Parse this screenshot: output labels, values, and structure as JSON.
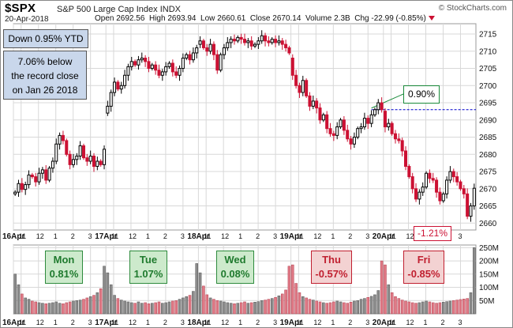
{
  "header": {
    "ticker": "$SPX",
    "name": "S&P 500 Large Cap Index",
    "exchange": "INDX",
    "date": "20-Apr-2018",
    "copyright": "© StockCharts.com",
    "open_label": "Open",
    "open": "2692.56",
    "high_label": "High",
    "high": "2693.94",
    "low_label": "Low",
    "low": "2660.61",
    "close_label": "Close",
    "close": "2670.14",
    "volume_label": "Volume",
    "volume": "2.3B",
    "chg_label": "Chg",
    "chg": "-22.99 (-0.85%)"
  },
  "annotations": {
    "ytd": "Down 0.95% YTD",
    "record_line1": "7.06% below",
    "record_line2": "the record close",
    "record_line3": "on Jan 26 2018",
    "gain_callout": "0.90%",
    "loss_callout": "-1.21%"
  },
  "days": [
    {
      "name": "Mon",
      "pct": "0.81%",
      "dir": "up"
    },
    {
      "name": "Tue",
      "pct": "1.07%",
      "dir": "up"
    },
    {
      "name": "Wed",
      "pct": "0.08%",
      "dir": "up"
    },
    {
      "name": "Thu",
      "pct": "-0.57%",
      "dir": "down"
    },
    {
      "name": "Fri",
      "pct": "-0.85%",
      "dir": "down"
    }
  ],
  "colors": {
    "up": "#000000",
    "down": "#cc1133",
    "vol_up": "#8c8c8c",
    "vol_down": "#e07a86",
    "grid": "#d8d8d8",
    "ref_line": "#0000cc"
  },
  "chart_data": [
    {
      "type": "candlestick",
      "title": "$SPX S&P 500 Large Cap Index INDX",
      "ylim": [
        2658,
        2718
      ],
      "y_ticks": [
        2660,
        2665,
        2670,
        2675,
        2680,
        2685,
        2690,
        2695,
        2700,
        2705,
        2710,
        2715
      ],
      "x_tick_labels": [
        "16Apr",
        "11",
        "12",
        "1",
        "2",
        "3",
        "17Apr",
        "11",
        "12",
        "1",
        "2",
        "3",
        "18Apr",
        "11",
        "12",
        "1",
        "2",
        "3",
        "19Apr",
        "11",
        "12",
        "1",
        "2",
        "3",
        "20Apr",
        "11",
        "12",
        "1",
        "2",
        "3"
      ],
      "reference_line": 2693.0,
      "closes": [
        2669.0,
        2671.5,
        2669.8,
        2671.2,
        2674.0,
        2673.5,
        2672.0,
        2674.5,
        2675.5,
        2672.5,
        2676.0,
        2678.0,
        2683.0,
        2685.5,
        2684.0,
        2680.0,
        2677.0,
        2678.5,
        2679.5,
        2682.5,
        2679.0,
        2678.0,
        2679.5,
        2676.5,
        2678.0,
        2677.0,
        2681.5,
        2694.0,
        2698.0,
        2701.0,
        2699.0,
        2700.0,
        2703.0,
        2705.5,
        2707.0,
        2706.0,
        2707.5,
        2708.0,
        2707.0,
        2705.0,
        2706.0,
        2704.5,
        2703.0,
        2704.0,
        2705.5,
        2706.5,
        2704.0,
        2703.0,
        2705.0,
        2708.0,
        2709.0,
        2707.5,
        2709.5,
        2711.0,
        2713.0,
        2711.0,
        2710.0,
        2712.0,
        2709.0,
        2704.5,
        2709.0,
        2711.0,
        2712.5,
        2713.5,
        2713.0,
        2714.0,
        2713.5,
        2712.5,
        2713.0,
        2711.5,
        2712.0,
        2713.0,
        2714.5,
        2713.0,
        2712.5,
        2713.5,
        2712.5,
        2713.0,
        2712.0,
        2711.0,
        2709.5,
        2703.0,
        2700.0,
        2698.0,
        2701.5,
        2697.0,
        2694.0,
        2695.5,
        2693.5,
        2690.0,
        2691.5,
        2687.5,
        2686.0,
        2685.5,
        2688.0,
        2690.0,
        2687.0,
        2684.5,
        2683.0,
        2685.0,
        2687.5,
        2688.0,
        2690.5,
        2689.0,
        2691.5,
        2693.0,
        2695.0,
        2693.0,
        2688.0,
        2689.0,
        2686.0,
        2684.5,
        2684.0,
        2681.0,
        2676.5,
        2673.5,
        2670.0,
        2667.0,
        2669.0,
        2670.5,
        2674.5,
        2673.0,
        2672.5,
        2669.0,
        2666.5,
        2668.5,
        2672.5,
        2675.0,
        2673.5,
        2672.0,
        2670.0,
        2668.5,
        2662.0,
        2665.0,
        2670.14
      ]
    },
    {
      "type": "bar",
      "title": "Volume",
      "ylim": [
        0,
        260
      ],
      "y_ticks": [
        50,
        100,
        150,
        200,
        250
      ],
      "y_tick_labels": [
        "50M",
        "100M",
        "150M",
        "200M",
        "250M"
      ],
      "values": [
        150,
        110,
        75,
        60,
        55,
        48,
        45,
        42,
        40,
        38,
        40,
        42,
        45,
        40,
        38,
        42,
        45,
        48,
        50,
        52,
        55,
        60,
        65,
        70,
        80,
        95,
        180,
        155,
        110,
        70,
        58,
        52,
        48,
        45,
        42,
        40,
        45,
        40,
        42,
        38,
        40,
        42,
        45,
        40,
        42,
        45,
        48,
        50,
        55,
        60,
        65,
        70,
        85,
        190,
        155,
        105,
        72,
        60,
        55,
        50,
        48,
        45,
        42,
        40,
        38,
        40,
        42,
        45,
        40,
        42,
        44,
        46,
        50,
        52,
        55,
        58,
        62,
        68,
        75,
        90,
        180,
        185,
        115,
        80,
        65,
        60,
        55,
        52,
        48,
        45,
        42,
        40,
        42,
        45,
        48,
        45,
        42,
        40,
        44,
        48,
        50,
        55,
        58,
        62,
        66,
        72,
        88,
        200,
        185,
        110,
        80,
        65,
        58,
        52,
        48,
        45,
        42,
        40,
        42,
        45,
        48,
        45,
        42,
        40,
        42,
        44,
        46,
        48,
        50,
        52,
        54,
        56,
        58,
        80,
        250
      ]
    }
  ]
}
